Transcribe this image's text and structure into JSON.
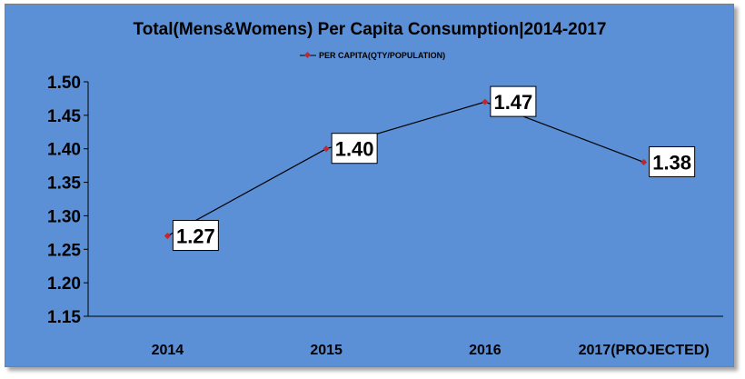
{
  "chart_data": {
    "type": "line",
    "title": "Total(Mens&Womens) Per Capita Consumption|2014-2017",
    "categories": [
      "2014",
      "2015",
      "2016",
      "2017(PROJECTED)"
    ],
    "series": [
      {
        "name": "PER CAPITA(QTY/POPULATION)",
        "values": [
          1.27,
          1.4,
          1.47,
          1.38
        ],
        "labels": [
          "1.27",
          "1.40",
          "1.47",
          "1.38"
        ],
        "color": "#000000",
        "marker_color": "#c0282d"
      }
    ],
    "ylim": [
      1.15,
      1.5
    ],
    "yticks": [
      "1.50",
      "1.45",
      "1.40",
      "1.35",
      "1.30",
      "1.25",
      "1.20",
      "1.15"
    ],
    "ytick_values": [
      1.5,
      1.45,
      1.4,
      1.35,
      1.3,
      1.25,
      1.2,
      1.15
    ],
    "xlabel": "",
    "ylabel": "",
    "grid": false,
    "legend_position": "top-center",
    "background_color": "#5b8fd6"
  }
}
